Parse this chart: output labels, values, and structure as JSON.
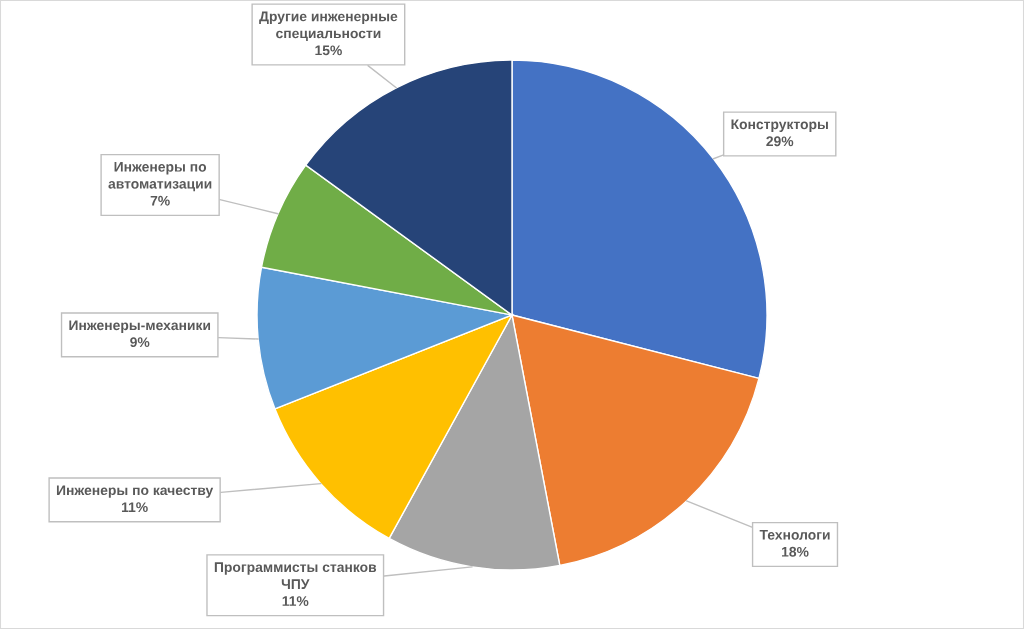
{
  "chart_data": {
    "type": "pie",
    "categories": [
      "Конструкторы",
      "Технологи",
      "Программисты станков\nЧПУ",
      "Инженеры по качеству",
      "Инженеры-механики",
      "Инженеры по\nавтоматизации",
      "Другие инженерные\nспециальности"
    ],
    "values": [
      29,
      18,
      11,
      11,
      9,
      7,
      15
    ],
    "value_labels": [
      "29%",
      "18%",
      "11%",
      "11%",
      "9%",
      "7%",
      "15%"
    ],
    "colors": [
      "#4472c4",
      "#ed7d31",
      "#a5a5a5",
      "#ffc000",
      "#5b9bd5",
      "#70ad47",
      "#264478"
    ],
    "legend": false
  }
}
